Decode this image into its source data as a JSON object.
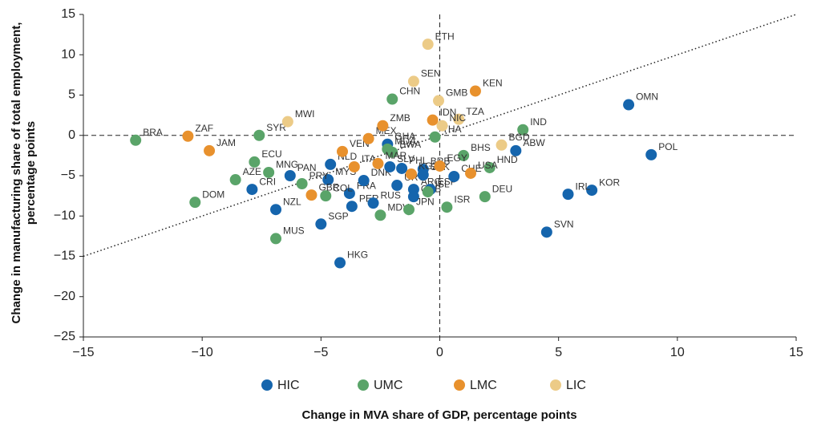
{
  "chart_data": {
    "type": "scatter",
    "xlabel": "Change in MVA share of GDP, percentage points",
    "ylabel": "Change in manufacturing share of total employment, percentage points",
    "xlim": [
      -15,
      15
    ],
    "ylim": [
      -25,
      15
    ],
    "xticks": [
      {
        "value": -15,
        "label": "−15"
      },
      {
        "value": -10,
        "label": "−10"
      },
      {
        "value": -5,
        "label": "−5"
      },
      0,
      5,
      10,
      15
    ],
    "yticks": [
      {
        "value": -25,
        "label": "−25"
      },
      {
        "value": -20,
        "label": "−20"
      },
      {
        "value": -15,
        "label": "−15"
      },
      {
        "value": -10,
        "label": "−10"
      },
      {
        "value": -5,
        "label": "−5"
      },
      0,
      5,
      10,
      15
    ],
    "trend_line": {
      "x": [
        -15,
        15
      ],
      "y": [
        -15,
        15
      ]
    },
    "series": [
      {
        "name": "HIC",
        "color": "#1565ad",
        "labels": [
          "CRI",
          "NZL",
          "PAN",
          "MYS",
          "SGP",
          "HKG",
          "FRA",
          "PER",
          "NLD",
          "RUS",
          "DNK",
          "URY",
          "ARG",
          "CUB",
          "ESP",
          "SLV",
          "PHL",
          "BRB",
          "GHA",
          "CHE",
          "ABW",
          "OMN",
          "POL",
          "KOR",
          "IRL",
          "SVN",
          "SVK"
        ],
        "x": [
          -7.9,
          -6.9,
          -6.3,
          -4.7,
          -5.0,
          -4.2,
          -3.8,
          -3.7,
          -4.6,
          -2.8,
          -3.2,
          -1.8,
          -1.1,
          -1.1,
          -0.4,
          -2.1,
          -1.6,
          -0.7,
          -2.2,
          0.6,
          3.2,
          7.95,
          8.9,
          6.4,
          5.4,
          4.5,
          -0.7
        ],
        "y": [
          -6.7,
          -9.2,
          -5.0,
          -5.5,
          -11.0,
          -15.8,
          -7.2,
          -8.8,
          -3.6,
          -8.4,
          -5.6,
          -6.2,
          -6.7,
          -7.6,
          -6.7,
          -3.9,
          -4.1,
          -4.2,
          -1.1,
          -5.1,
          -1.9,
          3.8,
          -2.4,
          -6.8,
          -7.3,
          -12.0,
          -4.9
        ]
      },
      {
        "name": "UMC",
        "color": "#5aa469",
        "labels": [
          "BRA",
          "SYR",
          "ECU",
          "MNG",
          "AZE",
          "DOM",
          "MUS",
          "COL",
          "PRY",
          "MDV",
          "JPN",
          "CHN",
          "BWA",
          "MDA",
          "ISL",
          "ISR",
          "DEU",
          "BHS",
          "HND",
          "IND",
          "THA"
        ],
        "x": [
          -12.8,
          -7.6,
          -7.8,
          -7.2,
          -8.6,
          -10.3,
          -6.9,
          -4.8,
          -5.8,
          -2.5,
          -1.3,
          -2.0,
          -2.0,
          -2.2,
          -0.5,
          0.3,
          1.9,
          1.0,
          2.1,
          3.5,
          -0.2
        ],
        "y": [
          -0.6,
          0.0,
          -3.3,
          -4.6,
          -5.5,
          -8.3,
          -12.8,
          -7.5,
          -6.0,
          -9.9,
          -9.2,
          4.5,
          -2.1,
          -1.7,
          -7.0,
          -8.9,
          -7.6,
          -2.5,
          -4.0,
          0.7,
          -0.2
        ]
      },
      {
        "name": "LMC",
        "color": "#e8912d",
        "labels": [
          "ZAF",
          "JAM",
          "GBR",
          "VEN",
          "MEX",
          "ZMB",
          "ITA",
          "MAR",
          "KGZ",
          "IDN",
          "KEN",
          "USA",
          "EGY"
        ],
        "x": [
          -10.6,
          -9.7,
          -5.4,
          -4.1,
          -3.0,
          -2.4,
          -3.6,
          -2.6,
          -1.2,
          -0.3,
          1.5,
          1.3,
          0.0
        ],
        "y": [
          -0.1,
          -1.9,
          -7.4,
          -2.0,
          -0.4,
          1.2,
          -3.9,
          -3.5,
          -4.8,
          1.9,
          5.5,
          -4.7,
          -3.8
        ]
      },
      {
        "name": "LIC",
        "color": "#eccb87",
        "labels": [
          "MWI",
          "SEN",
          "ETH",
          "GMB",
          "TZA",
          "NIC",
          "BGD"
        ],
        "x": [
          -6.4,
          -1.1,
          -0.5,
          -0.05,
          0.8,
          0.1,
          2.6
        ],
        "y": [
          1.7,
          6.7,
          11.3,
          4.3,
          2.0,
          1.2,
          -1.2
        ]
      }
    ]
  }
}
